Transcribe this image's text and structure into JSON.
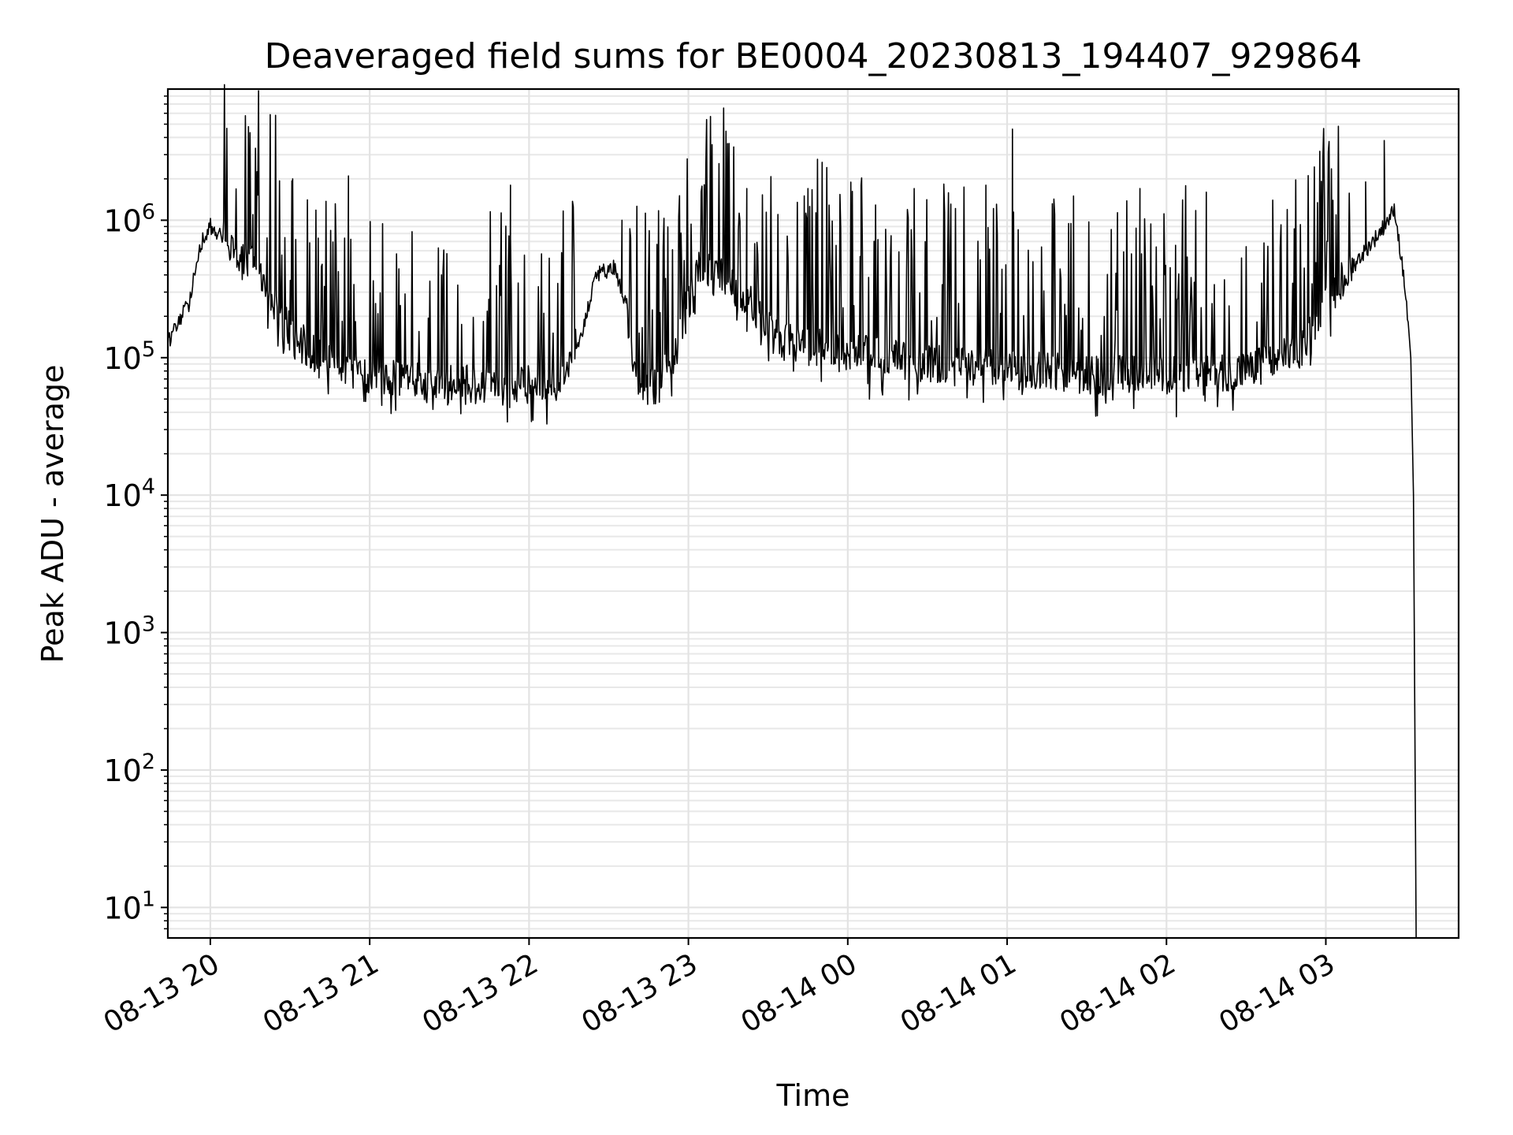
{
  "chart_data": {
    "type": "line",
    "title": "Deaveraged field sums for BE0004_20230813_194407_929864",
    "xlabel": "Time",
    "ylabel": "Peak ADU - average",
    "yscale": "log",
    "grid": true,
    "xlim": [
      "2023-08-13 19:44",
      "2023-08-14 03:50"
    ],
    "ylim": [
      6,
      9000000
    ],
    "x_ticks": [
      {
        "t": "2023-08-13 20:00",
        "label": "08-13 20"
      },
      {
        "t": "2023-08-13 21:00",
        "label": "08-13 21"
      },
      {
        "t": "2023-08-13 22:00",
        "label": "08-13 22"
      },
      {
        "t": "2023-08-13 23:00",
        "label": "08-13 23"
      },
      {
        "t": "2023-08-14 00:00",
        "label": "08-14 00"
      },
      {
        "t": "2023-08-14 01:00",
        "label": "08-14 01"
      },
      {
        "t": "2023-08-14 02:00",
        "label": "08-14 02"
      },
      {
        "t": "2023-08-14 03:00",
        "label": "08-14 03"
      }
    ],
    "y_ticks": [
      {
        "v": 10,
        "base": "10",
        "exp": "1"
      },
      {
        "v": 100,
        "base": "10",
        "exp": "2"
      },
      {
        "v": 1000,
        "base": "10",
        "exp": "3"
      },
      {
        "v": 10000,
        "base": "10",
        "exp": "4"
      },
      {
        "v": 100000,
        "base": "10",
        "exp": "5"
      },
      {
        "v": 1000000,
        "base": "10",
        "exp": "6"
      }
    ],
    "series": [
      {
        "color": "#000000",
        "baseline": [
          {
            "t": "2023-08-13 19:44",
            "v": 130000
          },
          {
            "t": "2023-08-13 19:52",
            "v": 250000
          },
          {
            "t": "2023-08-13 19:56",
            "v": 650000
          },
          {
            "t": "2023-08-13 20:00",
            "v": 900000
          },
          {
            "t": "2023-08-13 20:06",
            "v": 700000
          },
          {
            "t": "2023-08-13 20:12",
            "v": 500000
          },
          {
            "t": "2023-08-13 20:18",
            "v": 450000
          },
          {
            "t": "2023-08-13 20:24",
            "v": 250000
          },
          {
            "t": "2023-08-13 20:30",
            "v": 160000
          },
          {
            "t": "2023-08-13 20:40",
            "v": 100000
          },
          {
            "t": "2023-08-13 20:50",
            "v": 80000
          },
          {
            "t": "2023-08-13 21:10",
            "v": 70000
          },
          {
            "t": "2023-08-13 21:30",
            "v": 65000
          },
          {
            "t": "2023-08-13 21:50",
            "v": 62000
          },
          {
            "t": "2023-08-13 22:10",
            "v": 65000
          },
          {
            "t": "2023-08-13 22:20",
            "v": 150000
          },
          {
            "t": "2023-08-13 22:25",
            "v": 400000
          },
          {
            "t": "2023-08-13 22:32",
            "v": 450000
          },
          {
            "t": "2023-08-13 22:36",
            "v": 250000
          },
          {
            "t": "2023-08-13 22:40",
            "v": 80000
          },
          {
            "t": "2023-08-13 22:45",
            "v": 60000
          },
          {
            "t": "2023-08-13 22:55",
            "v": 110000
          },
          {
            "t": "2023-08-13 23:05",
            "v": 500000
          },
          {
            "t": "2023-08-13 23:20",
            "v": 300000
          },
          {
            "t": "2023-08-13 23:35",
            "v": 130000
          },
          {
            "t": "2023-08-14 00:00",
            "v": 110000
          },
          {
            "t": "2023-08-14 00:30",
            "v": 90000
          },
          {
            "t": "2023-08-14 01:00",
            "v": 85000
          },
          {
            "t": "2023-08-14 01:30",
            "v": 75000
          },
          {
            "t": "2023-08-14 02:00",
            "v": 75000
          },
          {
            "t": "2023-08-14 02:30",
            "v": 80000
          },
          {
            "t": "2023-08-14 02:50",
            "v": 110000
          },
          {
            "t": "2023-08-14 03:05",
            "v": 350000
          },
          {
            "t": "2023-08-14 03:20",
            "v": 800000
          },
          {
            "t": "2023-08-14 03:26",
            "v": 1200000
          },
          {
            "t": "2023-08-14 03:30",
            "v": 300000
          },
          {
            "t": "2023-08-14 03:32",
            "v": 100000
          },
          {
            "t": "2023-08-14 03:33",
            "v": 10000
          },
          {
            "t": "2023-08-14 03:34",
            "v": 6
          }
        ],
        "peaks": [
          {
            "t": "2023-08-13 20:16",
            "v": 1100000
          },
          {
            "t": "2023-08-13 20:31",
            "v": 2000000
          },
          {
            "t": "2023-08-13 20:52",
            "v": 2100000
          },
          {
            "t": "2023-08-13 21:53",
            "v": 1800000
          },
          {
            "t": "2023-08-13 22:35",
            "v": 1000000
          },
          {
            "t": "2023-08-13 22:59",
            "v": 300000
          },
          {
            "t": "2023-08-13 23:22",
            "v": 1700000
          },
          {
            "t": "2023-08-13 23:45",
            "v": 1700000
          },
          {
            "t": "2023-08-14 00:05",
            "v": 1800000
          },
          {
            "t": "2023-08-14 00:25",
            "v": 1700000
          },
          {
            "t": "2023-08-14 00:52",
            "v": 1800000
          },
          {
            "t": "2023-08-14 01:02",
            "v": 4600000
          },
          {
            "t": "2023-08-14 01:25",
            "v": 1500000
          },
          {
            "t": "2023-08-14 01:50",
            "v": 1700000
          },
          {
            "t": "2023-08-14 02:15",
            "v": 1600000
          },
          {
            "t": "2023-08-14 02:40",
            "v": 1400000
          },
          {
            "t": "2023-08-14 03:15",
            "v": 1900000
          },
          {
            "t": "2023-08-14 03:22",
            "v": 3800000
          }
        ]
      }
    ]
  }
}
